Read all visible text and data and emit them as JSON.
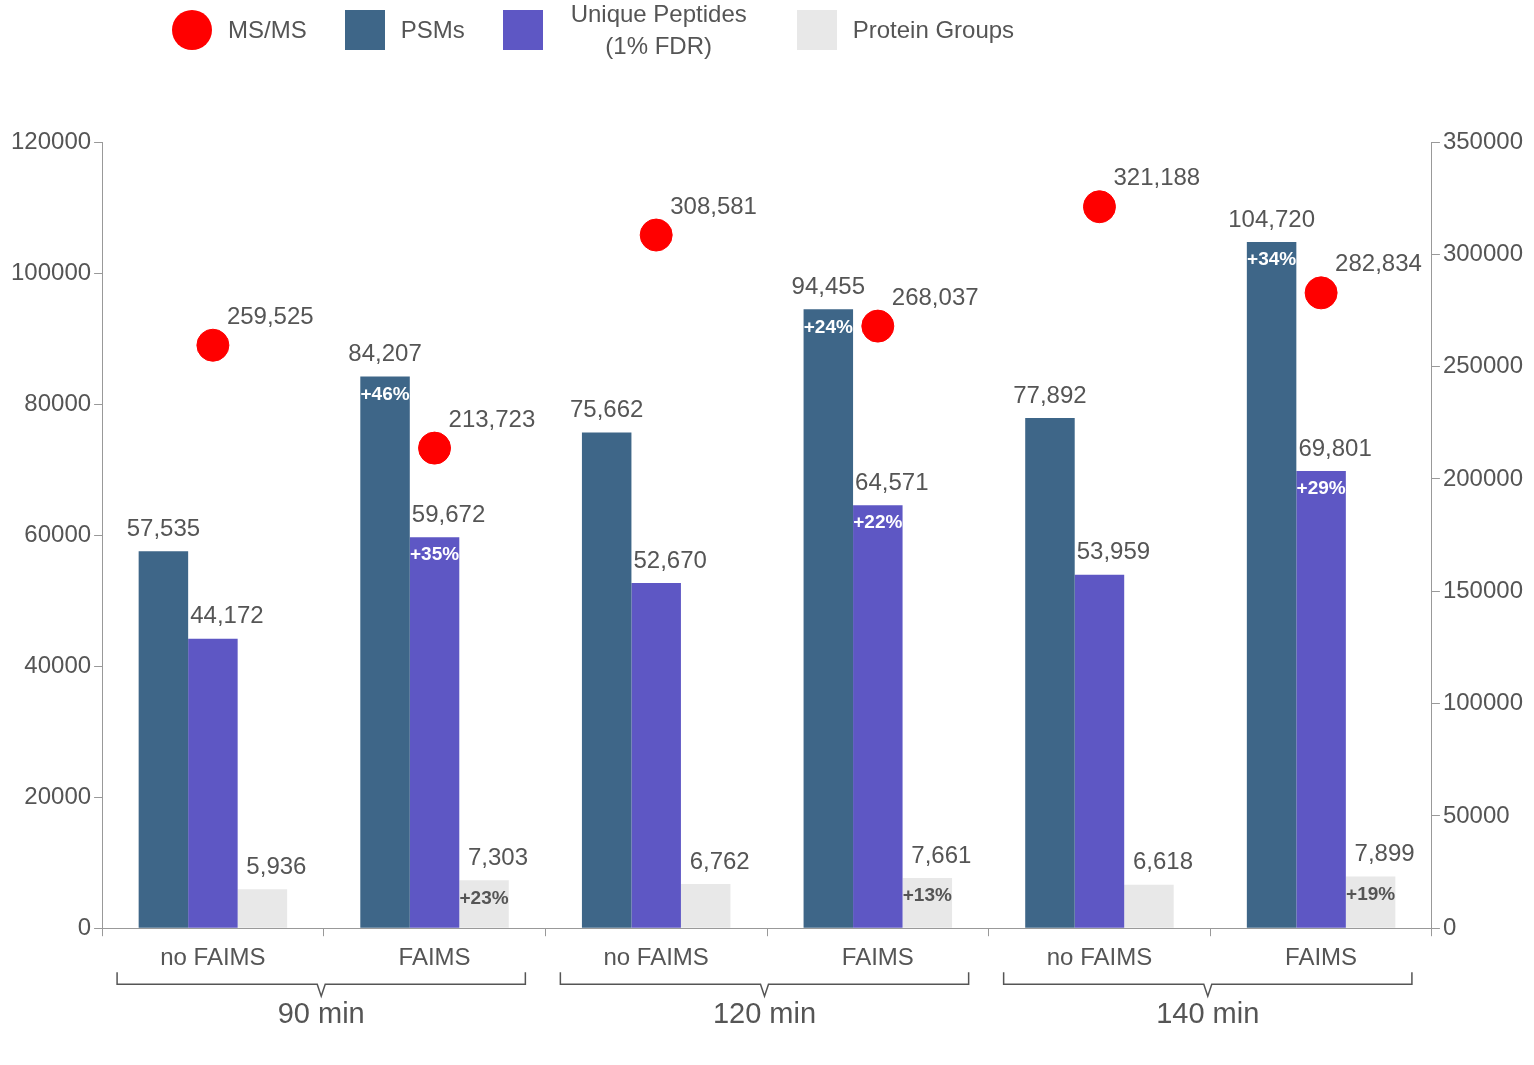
{
  "chart_data": {
    "type": "bar",
    "categories": [
      "no FAIMS",
      "FAIMS",
      "no FAIMS",
      "FAIMS",
      "no FAIMS",
      "FAIMS"
    ],
    "series": [
      {
        "name": "MS/MS",
        "type": "scatter",
        "axis": "y2",
        "color": "#ff0000",
        "values": [
          259525,
          213723,
          308581,
          268037,
          321188,
          282834
        ],
        "value_labels": [
          "259,525",
          "213,723",
          "308,581",
          "268,037",
          "321,188",
          "282,834"
        ]
      },
      {
        "name": "PSMs",
        "color": "#3e6688",
        "values": [
          57535,
          84207,
          75662,
          94455,
          77892,
          104720
        ],
        "value_labels": [
          "57,535",
          "84,207",
          "75,662",
          "94,455",
          "77,892",
          "104,720"
        ]
      },
      {
        "name": "Unique Peptides (1% FDR)",
        "color": "#5e57c4",
        "values": [
          44172,
          59672,
          52670,
          64571,
          53959,
          69801
        ],
        "value_labels": [
          "44,172",
          "59,672",
          "52,670",
          "64,571",
          "53,959",
          "69,801"
        ]
      },
      {
        "name": "Protein Groups",
        "color": "#e8e8e8",
        "values": [
          5936,
          7303,
          6762,
          7661,
          6618,
          7899
        ],
        "value_labels": [
          "5,936",
          "7,303",
          "6,762",
          "7,661",
          "6,618",
          "7,899"
        ]
      }
    ],
    "ylim": [
      0,
      120000
    ],
    "yticks": [
      0,
      20000,
      40000,
      60000,
      80000,
      100000,
      120000
    ],
    "y2lim": [
      0,
      350000
    ],
    "y2ticks": [
      0,
      50000,
      100000,
      150000,
      200000,
      250000,
      300000,
      350000
    ],
    "legend": "top",
    "marker": "circle",
    "annotations": [
      "90 min",
      "120 min",
      "140 min",
      "+46%",
      "+24%",
      "+34%",
      "+35%",
      "+22%",
      "+29%",
      "+23%",
      "+13%",
      "+19%"
    ]
  }
}
